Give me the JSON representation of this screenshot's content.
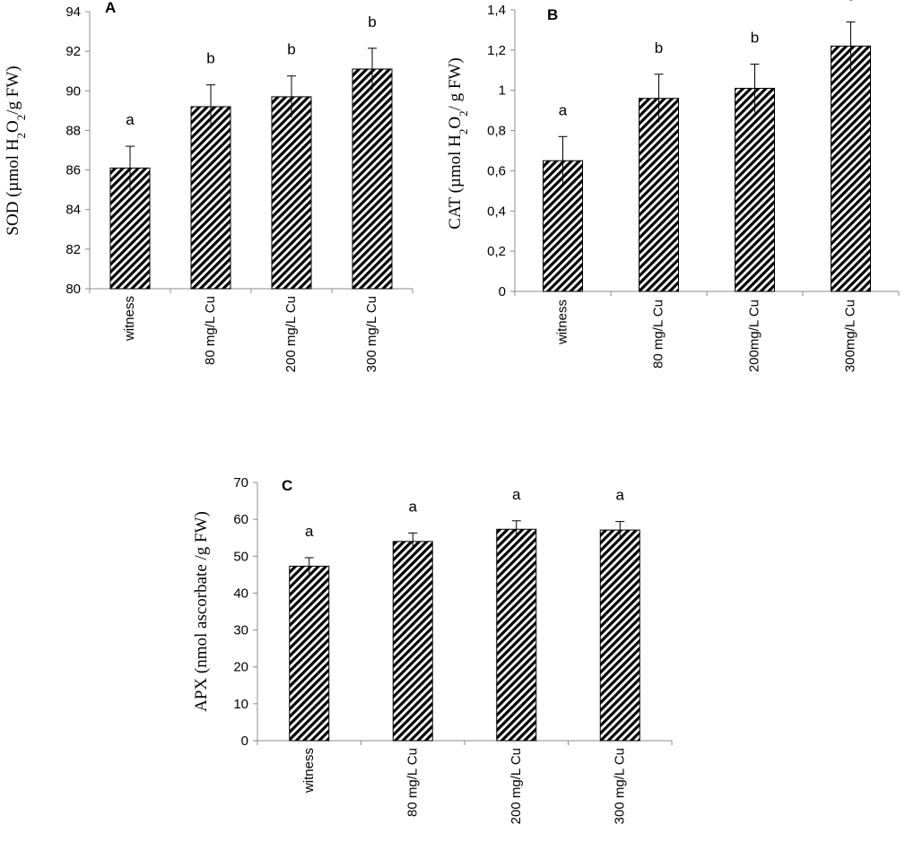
{
  "chart_data": [
    {
      "type": "bar",
      "panel_label": "A",
      "ylabel": "SOD (µmol H₂O₂/g FW)",
      "ylabel_parts": [
        "SOD (µmol H",
        "2",
        "O",
        "2",
        "/g FW)"
      ],
      "categories": [
        "witness",
        "80 mg/L Cu",
        "200 mg/L Cu",
        "300 mg/L Cu"
      ],
      "values": [
        86.1,
        89.2,
        89.7,
        91.1
      ],
      "errors": [
        1.1,
        1.1,
        1.05,
        1.05
      ],
      "significance": [
        "a",
        "b",
        "b",
        "b"
      ],
      "ylim": [
        80,
        94
      ],
      "yticks": [
        80,
        82,
        84,
        86,
        88,
        90,
        92,
        94
      ],
      "ytick_labels": [
        "80",
        "82",
        "84",
        "86",
        "88",
        "90",
        "92",
        "94"
      ],
      "grid": false,
      "legend": "none"
    },
    {
      "type": "bar",
      "panel_label": "B",
      "ylabel": "CAT (µmol H₂O₂/ g FW)",
      "ylabel_parts": [
        "CAT (µmol H",
        "2",
        "O",
        "2",
        "/ g FW)"
      ],
      "categories": [
        "witness",
        "80 mg/L Cu",
        "200mg/L Cu",
        "300mg/L Cu"
      ],
      "values": [
        0.65,
        0.96,
        1.01,
        1.22
      ],
      "errors": [
        0.12,
        0.12,
        0.12,
        0.12
      ],
      "significance": [
        "a",
        "b",
        "b",
        "c"
      ],
      "ylim": [
        0,
        1.4
      ],
      "yticks": [
        0,
        0.2,
        0.4,
        0.6,
        0.8,
        1.0,
        1.2,
        1.4
      ],
      "ytick_labels": [
        "0",
        "0,2",
        "0,4",
        "0,6",
        "0,8",
        "1",
        "1,2",
        "1,4"
      ],
      "grid": false,
      "legend": "none"
    },
    {
      "type": "bar",
      "panel_label": "C",
      "ylabel": "APX (nmol ascorbate /g FW)",
      "ylabel_parts": [
        "APX (nmol ascorbate /g FW)"
      ],
      "categories": [
        "witness",
        "80 mg/L Cu",
        "200 mg/L Cu",
        "300 mg/L Cu"
      ],
      "values": [
        47.3,
        54.0,
        57.3,
        57.1
      ],
      "errors": [
        2.3,
        2.3,
        2.3,
        2.3
      ],
      "significance": [
        "a",
        "a",
        "a",
        "a"
      ],
      "ylim": [
        0,
        70
      ],
      "yticks": [
        0,
        10,
        20,
        30,
        40,
        50,
        60,
        70
      ],
      "ytick_labels": [
        "0",
        "10",
        "20",
        "30",
        "40",
        "50",
        "60",
        "70"
      ],
      "grid": false,
      "legend": "none"
    }
  ],
  "colors": {
    "bar_stripe": "#000000",
    "bar_background": "#ffffff",
    "axis": "#8c8c8c",
    "text": "#000000"
  }
}
